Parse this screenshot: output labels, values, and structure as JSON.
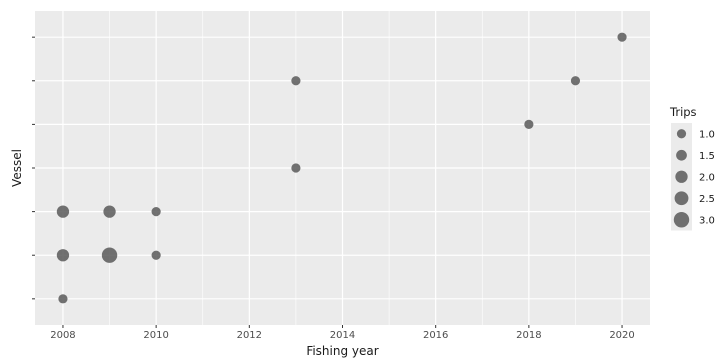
{
  "chart_data": {
    "type": "scatter",
    "title": "",
    "xlabel": "Fishing year",
    "ylabel": "Vessel",
    "xlim": [
      2007.4,
      2020.6
    ],
    "x_ticks": [
      2008,
      2010,
      2012,
      2014,
      2016,
      2018,
      2020
    ],
    "y_levels": 7,
    "grid": true,
    "legend": {
      "title": "Trips",
      "placement": "right",
      "entries": [
        {
          "label": "1.0",
          "value": 1.0
        },
        {
          "label": "1.5",
          "value": 1.5
        },
        {
          "label": "2.0",
          "value": 2.0
        },
        {
          "label": "2.5",
          "value": 2.5
        },
        {
          "label": "3.0",
          "value": 3.0
        }
      ]
    },
    "colors": {
      "panel": "#ebebeb",
      "grid": "#ffffff",
      "point": "#595959",
      "text": "#4d4d4d"
    },
    "points": [
      {
        "x": 2008,
        "y": 1,
        "trips": 1
      },
      {
        "x": 2008,
        "y": 2,
        "trips": 2
      },
      {
        "x": 2009,
        "y": 2,
        "trips": 3
      },
      {
        "x": 2010,
        "y": 2,
        "trips": 1
      },
      {
        "x": 2008,
        "y": 3,
        "trips": 2
      },
      {
        "x": 2009,
        "y": 3,
        "trips": 2
      },
      {
        "x": 2010,
        "y": 3,
        "trips": 1
      },
      {
        "x": 2013,
        "y": 4,
        "trips": 1
      },
      {
        "x": 2018,
        "y": 5,
        "trips": 1
      },
      {
        "x": 2013,
        "y": 6,
        "trips": 1
      },
      {
        "x": 2019,
        "y": 6,
        "trips": 1
      },
      {
        "x": 2020,
        "y": 7,
        "trips": 1
      }
    ]
  }
}
